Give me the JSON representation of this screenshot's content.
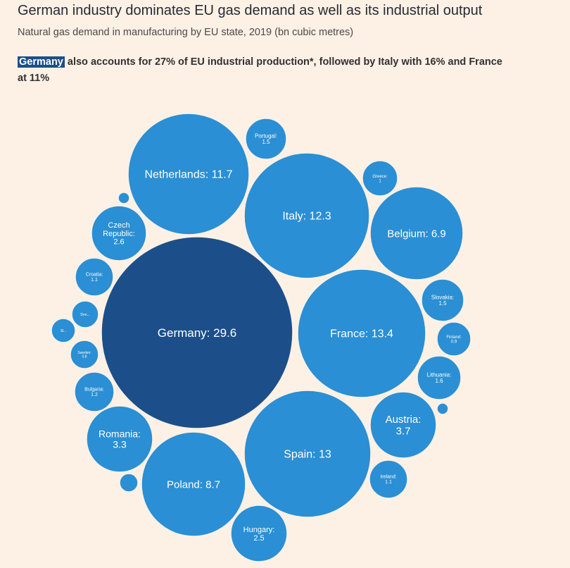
{
  "header": {
    "title": "German industry dominates EU gas demand as well as its industrial output",
    "subtitle": "Natural gas demand in manufacturing by EU state, 2019 (bn cubic metres)",
    "highlight_word": "Germany",
    "highlight_rest": " also accounts for 27% of EU industrial production*, followed by Italy with 16% and France at 11%"
  },
  "colors": {
    "bubble": "#2a8fd4",
    "germany": "#1c4f8a",
    "background": "#fdf1e6",
    "label": "#ffffff"
  },
  "chart_data": {
    "type": "bubble",
    "title": "German industry dominates EU gas demand as well as its industrial output",
    "unit": "bn cubic metres",
    "series": [
      {
        "name": "Germany",
        "display": "Germany: 29.6",
        "value": 29.6
      },
      {
        "name": "France",
        "display": "France: 13.4",
        "value": 13.4
      },
      {
        "name": "Italy",
        "display": "Italy: 12.3",
        "value": 12.3
      },
      {
        "name": "Spain",
        "display": "Spain: 13",
        "value": 13
      },
      {
        "name": "Netherlands",
        "display": "Netherlands: 11.7",
        "value": 11.7
      },
      {
        "name": "Poland",
        "display": "Poland: 8.7",
        "value": 8.7
      },
      {
        "name": "Belgium",
        "display": "Belgium: 6.9",
        "value": 6.9
      },
      {
        "name": "Austria",
        "display": "Austria:\n3.7",
        "value": 3.7
      },
      {
        "name": "Romania",
        "display": "Romania:\n3.3",
        "value": 3.3
      },
      {
        "name": "Czech Republic",
        "display": "Czech\nRepublic:\n2.6",
        "value": 2.6
      },
      {
        "name": "Hungary",
        "display": "Hungary:\n2.5",
        "value": 2.5
      },
      {
        "name": "Portugal",
        "display": "Portugal:\n1.5",
        "value": 1.5
      },
      {
        "name": "Slovakia",
        "display": "Slovakia:\n1.5",
        "value": 1.5
      },
      {
        "name": "Lithuania",
        "display": "Lithuania:\n1.6",
        "value": 1.6
      },
      {
        "name": "Croatia",
        "display": "Croatia:\n1.1",
        "value": 1.1
      },
      {
        "name": "Ireland",
        "display": "Ireland:\n1.1",
        "value": 1.1
      },
      {
        "name": "Bulgaria",
        "display": "Bulgaria:\n1.2",
        "value": 1.2
      },
      {
        "name": "Greece",
        "display": "Greece:\n1",
        "value": 1
      },
      {
        "name": "Finland",
        "display": "Finland:\n0.9",
        "value": 0.9
      },
      {
        "name": "Sweden",
        "display": "Sweden:\n0.8",
        "value": 0.8
      },
      {
        "name": "Denmark",
        "display": "Den...",
        "value": 0.7
      },
      {
        "name": "Slovenia",
        "display": "Sl...",
        "value": 0.6
      },
      {
        "name": "Unlabelled 1",
        "display": "",
        "value": 0.2
      },
      {
        "name": "Unlabelled 2",
        "display": "",
        "value": 0.2
      },
      {
        "name": "Unlabelled 3",
        "display": "",
        "value": 0.3
      }
    ]
  }
}
